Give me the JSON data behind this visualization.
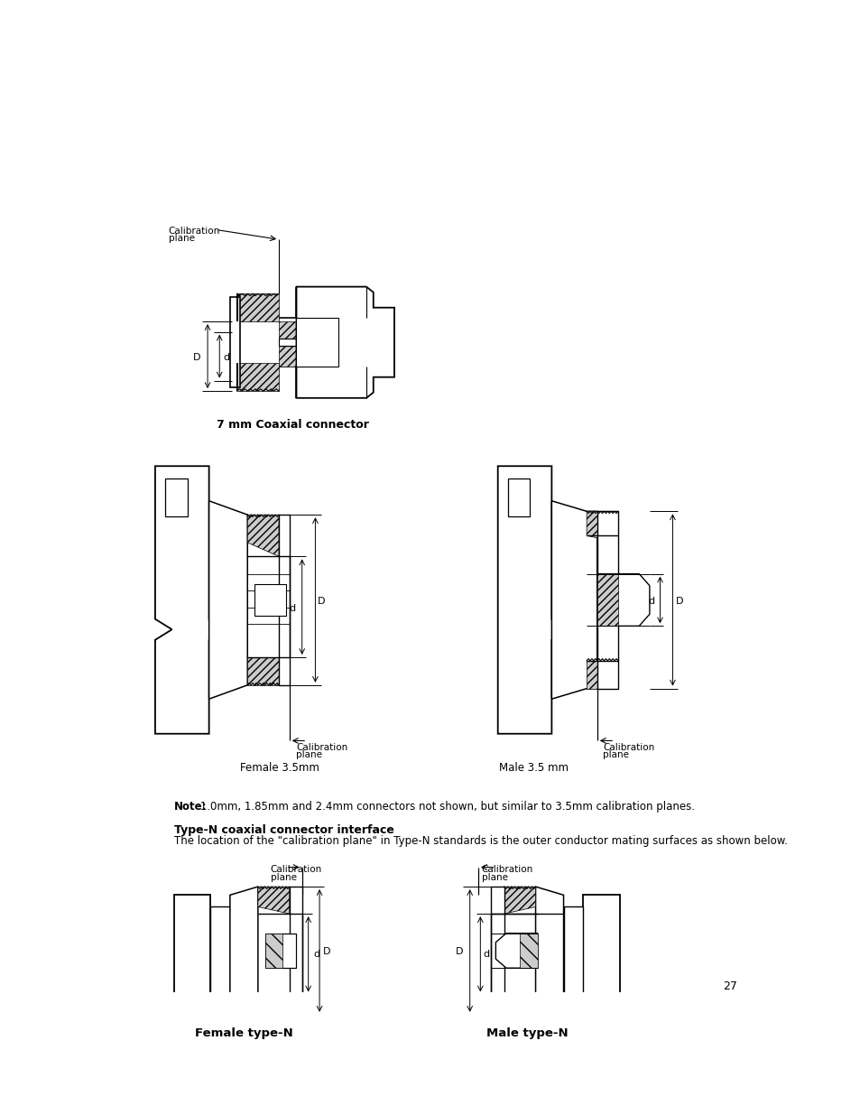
{
  "page_number": "27",
  "bg": "#ffffff",
  "title_7mm": "7 mm Coaxial connector",
  "title_female35": "Female 3.5mm",
  "title_male35": "Male 3.5 mm",
  "title_typeN": "Type-N coaxial connector interface",
  "desc_typeN": "The location of the \"calibration plane\" in Type-N standards is the outer conductor mating surfaces as shown below.",
  "note_bold": "Note:",
  "note_rest": " 1.0mm, 1.85mm and 2.4mm connectors not shown, but similar to 3.5mm calibration planes.",
  "title_femaleN": "Female type-N",
  "title_maleN": "Male type-N"
}
